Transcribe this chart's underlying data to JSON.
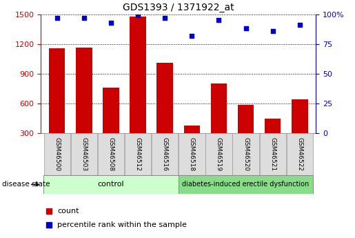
{
  "title": "GDS1393 / 1371922_at",
  "samples": [
    "GSM46500",
    "GSM46503",
    "GSM46508",
    "GSM46512",
    "GSM46516",
    "GSM46518",
    "GSM46519",
    "GSM46520",
    "GSM46521",
    "GSM46522"
  ],
  "counts": [
    1155,
    1165,
    760,
    1480,
    1010,
    380,
    800,
    590,
    450,
    645
  ],
  "percentile": [
    97,
    97,
    93,
    99,
    97,
    82,
    95,
    88,
    86,
    91
  ],
  "control_label": "control",
  "disease_label": "diabetes-induced erectile dysfunction",
  "disease_state_label": "disease state",
  "ylim_left": [
    300,
    1500
  ],
  "ylim_right": [
    0,
    100
  ],
  "yticks_left": [
    300,
    600,
    900,
    1200,
    1500
  ],
  "yticks_right": [
    0,
    25,
    50,
    75,
    100
  ],
  "bar_color": "#cc0000",
  "scatter_color": "#0000cc",
  "control_bg": "#ccffcc",
  "disease_bg": "#88dd88",
  "tick_label_bg": "#dddddd",
  "legend_count_label": "count",
  "legend_pct_label": "percentile rank within the sample",
  "bar_width": 0.6,
  "n_control": 5,
  "n_disease": 5
}
